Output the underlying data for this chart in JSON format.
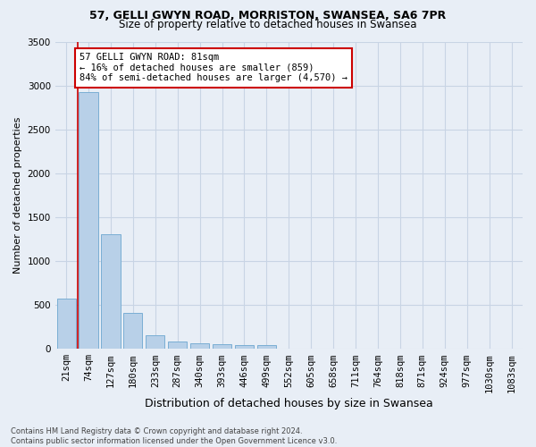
{
  "title1": "57, GELLI GWYN ROAD, MORRISTON, SWANSEA, SA6 7PR",
  "title2": "Size of property relative to detached houses in Swansea",
  "xlabel": "Distribution of detached houses by size in Swansea",
  "ylabel": "Number of detached properties",
  "bin_labels": [
    "21sqm",
    "74sqm",
    "127sqm",
    "180sqm",
    "233sqm",
    "287sqm",
    "340sqm",
    "393sqm",
    "446sqm",
    "499sqm",
    "552sqm",
    "605sqm",
    "658sqm",
    "711sqm",
    "764sqm",
    "818sqm",
    "871sqm",
    "924sqm",
    "977sqm",
    "1030sqm",
    "1083sqm"
  ],
  "bar_values": [
    570,
    2920,
    1310,
    415,
    155,
    85,
    60,
    55,
    45,
    40,
    0,
    0,
    0,
    0,
    0,
    0,
    0,
    0,
    0,
    0,
    0
  ],
  "bar_color": "#b8d0e8",
  "bar_edge_color": "#7aaed4",
  "grid_color": "#c8d4e4",
  "bg_color": "#e8eef6",
  "annotation_text": "57 GELLI GWYN ROAD: 81sqm\n← 16% of detached houses are smaller (859)\n84% of semi-detached houses are larger (4,570) →",
  "annotation_box_color": "#ffffff",
  "annotation_border_color": "#cc0000",
  "footer_text": "Contains HM Land Registry data © Crown copyright and database right 2024.\nContains public sector information licensed under the Open Government Licence v3.0.",
  "ylim": [
    0,
    3500
  ],
  "yticks": [
    0,
    500,
    1000,
    1500,
    2000,
    2500,
    3000,
    3500
  ],
  "red_line_x": 0.5,
  "title1_fontsize": 9,
  "title2_fontsize": 8.5,
  "xlabel_fontsize": 9,
  "ylabel_fontsize": 8,
  "tick_fontsize": 7.5,
  "annot_fontsize": 7.5
}
